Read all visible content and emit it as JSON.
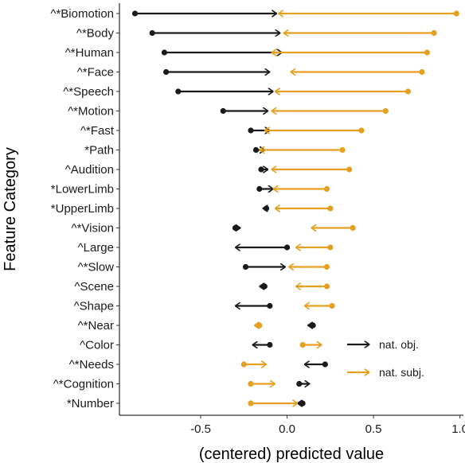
{
  "chart_data": {
    "type": "scatter",
    "subtype": "arrow-dumbbell",
    "title": "",
    "xlabel": "(centered) predicted value",
    "ylabel": "Feature Category",
    "xlim": [
      -0.97,
      1.02
    ],
    "xticks": [
      -0.5,
      0.0,
      0.5,
      1.0
    ],
    "xtick_labels": [
      "-0.5",
      "0.0",
      "0.5",
      "1.0"
    ],
    "grid": false,
    "legend_position": "bottom-right",
    "categories": [
      "^*Biomotion",
      "^*Body",
      "^*Human",
      "^*Face",
      "^*Speech",
      "^*Motion",
      "^*Fast",
      "*Path",
      "^Audition",
      "*LowerLimb",
      "*UpperLimb",
      "^*Vision",
      "^Large",
      "^*Slow",
      "^Scene",
      "^Shape",
      "^*Near",
      "^Color",
      "^*Needs",
      "^*Cognition",
      "*Number"
    ],
    "series": [
      {
        "name": "nat. obj.",
        "color": "#1a1a1a",
        "start": [
          -0.88,
          -0.78,
          -0.71,
          -0.7,
          -0.63,
          -0.37,
          -0.21,
          -0.18,
          -0.15,
          -0.16,
          -0.12,
          -0.3,
          0.0,
          -0.24,
          -0.13,
          -0.1,
          0.15,
          -0.1,
          0.22,
          0.07,
          0.09
        ],
        "end": [
          -0.06,
          -0.04,
          -0.03,
          -0.1,
          -0.08,
          -0.11,
          -0.1,
          -0.13,
          -0.11,
          -0.08,
          -0.14,
          -0.27,
          -0.3,
          -0.01,
          -0.16,
          -0.3,
          0.12,
          -0.2,
          0.1,
          0.13,
          0.06
        ]
      },
      {
        "name": "nat. subj.",
        "color": "#E6A020",
        "start": [
          0.98,
          0.85,
          0.81,
          0.78,
          0.7,
          0.57,
          0.43,
          0.32,
          0.36,
          0.23,
          0.25,
          0.38,
          0.25,
          0.23,
          0.23,
          0.26,
          -0.16,
          0.09,
          -0.25,
          -0.21,
          -0.21
        ],
        "end": [
          -0.05,
          -0.02,
          -0.09,
          0.02,
          -0.07,
          -0.09,
          -0.13,
          -0.16,
          -0.09,
          -0.08,
          -0.07,
          0.14,
          0.05,
          0.01,
          0.05,
          0.1,
          -0.19,
          0.2,
          -0.12,
          -0.07,
          0.06
        ]
      }
    ]
  }
}
